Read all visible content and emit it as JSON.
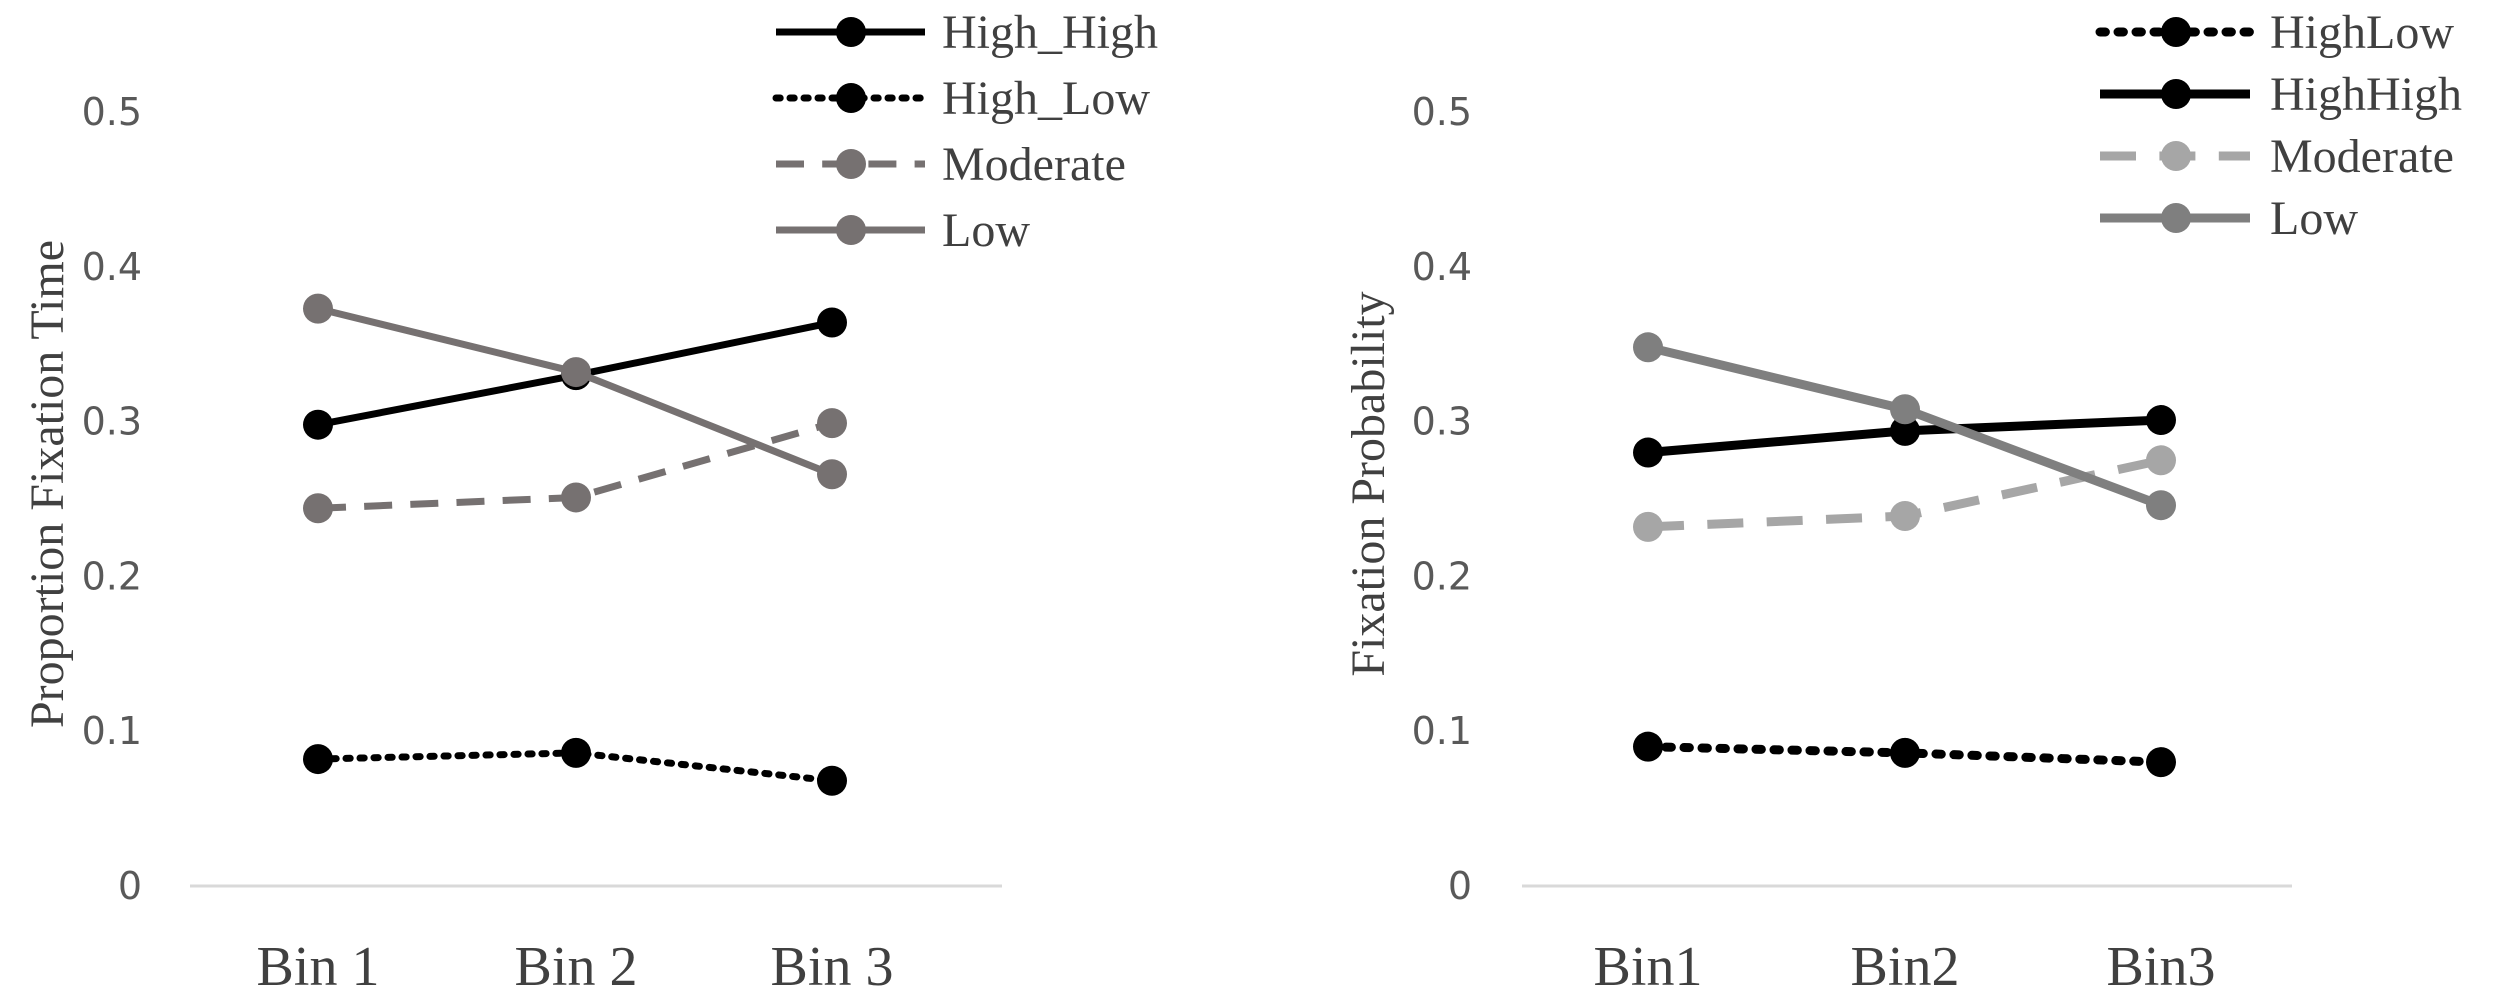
{
  "chart_data": [
    {
      "type": "line",
      "title": "",
      "xlabel": "",
      "ylabel": "Proportion Fixation Time",
      "ylim": [
        0,
        0.5
      ],
      "yticks": [
        "0",
        "0.1",
        "0.2",
        "0.3",
        "0.4",
        "0.5"
      ],
      "categories": [
        "Bin 1",
        "Bin 2",
        "Bin 3"
      ],
      "grid": false,
      "legend_position": "top-right",
      "series": [
        {
          "name": "High_High",
          "values": [
            0.298,
            0.33,
            0.364
          ],
          "color": "#000000",
          "style": "solid"
        },
        {
          "name": "High_Low",
          "values": [
            0.082,
            0.086,
            0.068
          ],
          "color": "#000000",
          "style": "dotted"
        },
        {
          "name": "Moderate",
          "values": [
            0.244,
            0.251,
            0.299
          ],
          "color": "#767171",
          "style": "dashed"
        },
        {
          "name": "Low",
          "values": [
            0.373,
            0.332,
            0.266
          ],
          "color": "#767171",
          "style": "solid"
        }
      ]
    },
    {
      "type": "line",
      "title": "",
      "xlabel": "",
      "ylabel": "Fixation Probability",
      "ylim": [
        0,
        0.5
      ],
      "yticks": [
        "0",
        "0.1",
        "0.2",
        "0.3",
        "0.4",
        "0.5"
      ],
      "categories": [
        "Bin1",
        "Bin2",
        "Bin3"
      ],
      "grid": false,
      "legend_position": "top-right",
      "series": [
        {
          "name": "HighLow",
          "values": [
            0.09,
            0.086,
            0.08
          ],
          "color": "#000000",
          "style": "dotted"
        },
        {
          "name": "HighHigh",
          "values": [
            0.28,
            0.294,
            0.301
          ],
          "color": "#000000",
          "style": "solid"
        },
        {
          "name": "Moderate",
          "values": [
            0.232,
            0.239,
            0.275
          ],
          "color": "#A6A6A6",
          "style": "dashed"
        },
        {
          "name": "Low",
          "values": [
            0.348,
            0.308,
            0.246
          ],
          "color": "#7F7F7F",
          "style": "solid"
        }
      ]
    }
  ]
}
